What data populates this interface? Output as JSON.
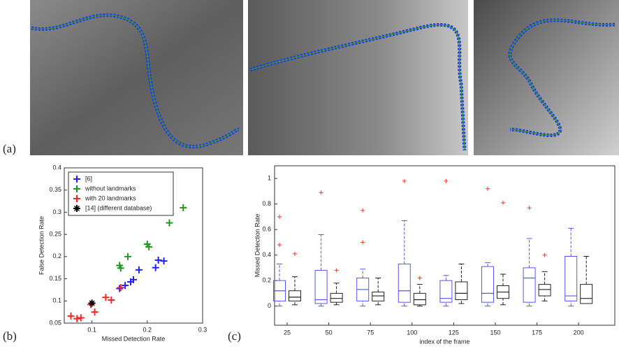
{
  "panel_labels": [
    "(a)",
    "(b)",
    "(c)"
  ],
  "chart_data": [
    {
      "type": "scatter",
      "xlabel": "Missed Detection Rate",
      "ylabel": "False Detection Rate",
      "xlim": [
        0.05,
        0.3
      ],
      "ylim": [
        0.05,
        0.4
      ],
      "xticks": [
        0.1,
        0.2,
        0.3
      ],
      "yticks": [
        0.05,
        0.1,
        0.15,
        0.2,
        0.25,
        0.3,
        0.35,
        0.4
      ],
      "legend": "upper-left",
      "series": [
        {
          "name": "[6]",
          "color": "#1f1fff",
          "marker": "plus",
          "x": [
            0.15,
            0.16,
            0.17,
            0.175,
            0.185,
            0.215,
            0.22,
            0.23
          ],
          "y": [
            0.128,
            0.135,
            0.143,
            0.148,
            0.17,
            0.175,
            0.192,
            0.19
          ]
        },
        {
          "name": "without landmarks",
          "color": "#1a9a1a",
          "marker": "plus",
          "x": [
            0.15,
            0.152,
            0.165,
            0.2,
            0.203,
            0.24,
            0.265
          ],
          "y": [
            0.18,
            0.174,
            0.2,
            0.228,
            0.222,
            0.276,
            0.31
          ]
        },
        {
          "name": "with 20 landmarks",
          "color": "#ff2020",
          "marker": "plus",
          "x": [
            0.062,
            0.073,
            0.08,
            0.098,
            0.105,
            0.125,
            0.135,
            0.152
          ],
          "y": [
            0.066,
            0.06,
            0.062,
            0.092,
            0.075,
            0.108,
            0.102,
            0.13
          ]
        },
        {
          "name": "[14] (different database)",
          "color": "#000000",
          "marker": "star",
          "x": [
            0.1
          ],
          "y": [
            0.095
          ]
        }
      ]
    },
    {
      "type": "box",
      "xlabel": "index of the frame",
      "ylabel": "Missed Detection Rate",
      "ylim": [
        -0.15,
        1.1
      ],
      "yticks": [
        0,
        0.2,
        0.4,
        0.6,
        0.8,
        1
      ],
      "categories": [
        "25",
        "50",
        "75",
        "100",
        "125",
        "150",
        "175",
        "200"
      ],
      "series": [
        {
          "color": "#5555ff",
          "stats": [
            [
              0,
              0.04,
              0.12,
              0.2,
              0.33
            ],
            [
              0,
              0.02,
              0.05,
              0.28,
              0.56
            ],
            [
              0,
              0.04,
              0.13,
              0.22,
              0.29
            ],
            [
              0,
              0.03,
              0.12,
              0.33,
              0.67
            ],
            [
              0,
              0.03,
              0.06,
              0.2,
              0.24
            ],
            [
              0,
              0.03,
              0.1,
              0.31,
              0.34
            ],
            [
              0,
              0.03,
              0.22,
              0.3,
              0.53
            ],
            [
              0,
              0.04,
              0.08,
              0.39,
              0.61
            ]
          ],
          "outliers": [
            [
              0.48,
              0.7
            ],
            [
              0.89
            ],
            [
              0.5,
              0.75
            ],
            [
              0.98
            ],
            [
              0.98
            ],
            [
              0.92
            ],
            [
              0.77
            ],
            []
          ]
        },
        {
          "color": "#222222",
          "stats": [
            [
              0.01,
              0.04,
              0.07,
              0.12,
              0.23
            ],
            [
              0.01,
              0.03,
              0.06,
              0.1,
              0.18
            ],
            [
              0.01,
              0.04,
              0.08,
              0.11,
              0.22
            ],
            [
              0,
              0.01,
              0.05,
              0.1,
              0.17
            ],
            [
              0.02,
              0.05,
              0.1,
              0.19,
              0.33
            ],
            [
              0.01,
              0.06,
              0.11,
              0.16,
              0.25
            ],
            [
              0.04,
              0.08,
              0.13,
              0.17,
              0.27
            ],
            [
              0.02,
              0.02,
              0.06,
              0.17,
              0.39
            ]
          ],
          "outliers": [
            [
              0.41
            ],
            [
              0.28
            ],
            [],
            [
              0.22
            ],
            [],
            [
              0.81
            ],
            [
              0.4
            ],
            []
          ]
        }
      ]
    }
  ]
}
